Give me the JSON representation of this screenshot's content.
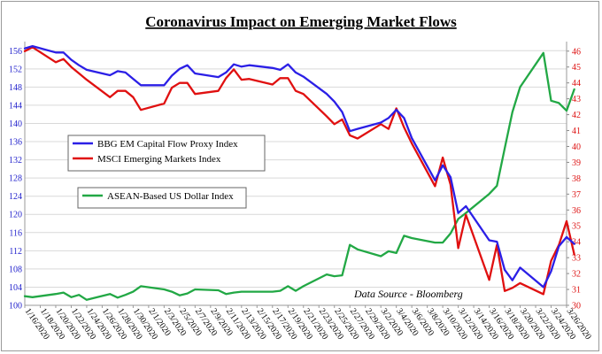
{
  "chart_data": {
    "type": "line",
    "title": "Coronavirus Impact on Emerging Market Flows",
    "source": "Data Source - Bloomberg",
    "grid": "horizontal",
    "legend": "inside-left",
    "x_range": [
      "1/16/2020",
      "3/26/2020"
    ],
    "x_ticks": [
      "1/16/2020",
      "1/18/2020",
      "1/20/2020",
      "1/22/2020",
      "1/24/2020",
      "1/26/2020",
      "1/28/2020",
      "1/30/2020",
      "2/1/2020",
      "2/3/2020",
      "2/5/2020",
      "2/7/2020",
      "2/9/2020",
      "2/11/2020",
      "2/13/2020",
      "2/15/2020",
      "2/17/2020",
      "2/19/2020",
      "2/21/2020",
      "2/23/2020",
      "2/25/2020",
      "2/27/2020",
      "2/29/2020",
      "3/2/2020",
      "3/4/2020",
      "3/6/2020",
      "3/8/2020",
      "3/10/2020",
      "3/12/2020",
      "3/14/2020",
      "3/16/2020",
      "3/18/2020",
      "3/20/2020",
      "3/22/2020",
      "3/24/2020",
      "3/26/2020"
    ],
    "y_left": {
      "min": 100,
      "max": 158,
      "ticks": [
        100,
        104,
        108,
        112,
        116,
        120,
        124,
        128,
        132,
        136,
        140,
        144,
        148,
        152,
        156
      ],
      "color": "#2222cc"
    },
    "y_right": {
      "min": 30,
      "max": 46.6,
      "ticks": [
        30,
        31,
        32,
        33,
        34,
        35,
        36,
        37,
        38,
        39,
        40,
        41,
        42,
        43,
        44,
        45,
        46
      ],
      "color": "#dd1111"
    },
    "series": [
      {
        "name": "BBG EM Capital Flow Proxy Index",
        "axis": "left",
        "color": "#2b1fe6",
        "points": [
          [
            "1/16/2020",
            156.5
          ],
          [
            "1/17/2020",
            157.0
          ],
          [
            "1/20/2020",
            155.6
          ],
          [
            "1/21/2020",
            155.6
          ],
          [
            "1/22/2020",
            154.0
          ],
          [
            "1/23/2020",
            152.8
          ],
          [
            "1/24/2020",
            151.8
          ],
          [
            "1/27/2020",
            150.6
          ],
          [
            "1/28/2020",
            151.5
          ],
          [
            "1/29/2020",
            151.2
          ],
          [
            "1/30/2020",
            149.8
          ],
          [
            "1/31/2020",
            148.4
          ],
          [
            "2/3/2020",
            148.4
          ],
          [
            "2/4/2020",
            150.5
          ],
          [
            "2/5/2020",
            152.0
          ],
          [
            "2/6/2020",
            152.8
          ],
          [
            "2/7/2020",
            151.0
          ],
          [
            "2/10/2020",
            150.2
          ],
          [
            "2/11/2020",
            151.2
          ],
          [
            "2/12/2020",
            153.0
          ],
          [
            "2/13/2020",
            152.5
          ],
          [
            "2/14/2020",
            152.8
          ],
          [
            "2/17/2020",
            152.2
          ],
          [
            "2/18/2020",
            151.8
          ],
          [
            "2/19/2020",
            153.0
          ],
          [
            "2/20/2020",
            151.2
          ],
          [
            "2/21/2020",
            150.3
          ],
          [
            "2/24/2020",
            146.5
          ],
          [
            "2/25/2020",
            144.8
          ],
          [
            "2/26/2020",
            142.5
          ],
          [
            "2/27/2020",
            138.3
          ],
          [
            "2/28/2020",
            138.8
          ],
          [
            "3/2/2020",
            140.2
          ],
          [
            "3/3/2020",
            141.2
          ],
          [
            "3/4/2020",
            143.0
          ],
          [
            "3/5/2020",
            141.2
          ],
          [
            "3/6/2020",
            136.8
          ],
          [
            "3/9/2020",
            127.5
          ],
          [
            "3/10/2020",
            130.8
          ],
          [
            "3/11/2020",
            128.2
          ],
          [
            "3/12/2020",
            120.3
          ],
          [
            "3/13/2020",
            121.8
          ],
          [
            "3/16/2020",
            114.3
          ],
          [
            "3/17/2020",
            114.0
          ],
          [
            "3/18/2020",
            107.8
          ],
          [
            "3/19/2020",
            105.5
          ],
          [
            "3/20/2020",
            108.3
          ],
          [
            "3/23/2020",
            104.0
          ],
          [
            "3/24/2020",
            107.5
          ],
          [
            "3/25/2020",
            113.0
          ],
          [
            "3/26/2020",
            115.0
          ],
          [
            "3/27/2020",
            113.5
          ]
        ]
      },
      {
        "name": "MSCI Emerging Markets Index",
        "axis": "right",
        "color": "#e01010",
        "points": [
          [
            "1/16/2020",
            46.0
          ],
          [
            "1/17/2020",
            46.25
          ],
          [
            "1/20/2020",
            45.3
          ],
          [
            "1/21/2020",
            45.5
          ],
          [
            "1/22/2020",
            45.0
          ],
          [
            "1/23/2020",
            44.6
          ],
          [
            "1/24/2020",
            44.2
          ],
          [
            "1/27/2020",
            43.1
          ],
          [
            "1/28/2020",
            43.5
          ],
          [
            "1/29/2020",
            43.5
          ],
          [
            "1/30/2020",
            43.1
          ],
          [
            "1/31/2020",
            42.3
          ],
          [
            "2/3/2020",
            42.7
          ],
          [
            "2/4/2020",
            43.7
          ],
          [
            "2/5/2020",
            44.0
          ],
          [
            "2/6/2020",
            44.0
          ],
          [
            "2/7/2020",
            43.3
          ],
          [
            "2/10/2020",
            43.5
          ],
          [
            "2/11/2020",
            44.3
          ],
          [
            "2/12/2020",
            44.85
          ],
          [
            "2/13/2020",
            44.2
          ],
          [
            "2/14/2020",
            44.25
          ],
          [
            "2/17/2020",
            43.9
          ],
          [
            "2/18/2020",
            44.3
          ],
          [
            "2/19/2020",
            44.3
          ],
          [
            "2/20/2020",
            43.5
          ],
          [
            "2/21/2020",
            43.3
          ],
          [
            "2/24/2020",
            41.9
          ],
          [
            "2/25/2020",
            41.4
          ],
          [
            "2/26/2020",
            41.7
          ],
          [
            "2/27/2020",
            40.7
          ],
          [
            "2/28/2020",
            40.5
          ],
          [
            "3/2/2020",
            41.4
          ],
          [
            "3/3/2020",
            41.1
          ],
          [
            "3/4/2020",
            42.4
          ],
          [
            "3/5/2020",
            41.2
          ],
          [
            "3/6/2020",
            40.2
          ],
          [
            "3/9/2020",
            37.5
          ],
          [
            "3/10/2020",
            39.3
          ],
          [
            "3/11/2020",
            37.6
          ],
          [
            "3/12/2020",
            33.6
          ],
          [
            "3/13/2020",
            35.7
          ],
          [
            "3/16/2020",
            31.6
          ],
          [
            "3/17/2020",
            33.8
          ],
          [
            "3/18/2020",
            30.9
          ],
          [
            "3/19/2020",
            31.1
          ],
          [
            "3/20/2020",
            31.4
          ],
          [
            "3/23/2020",
            30.7
          ],
          [
            "3/24/2020",
            32.8
          ],
          [
            "3/25/2020",
            33.8
          ],
          [
            "3/26/2020",
            35.3
          ],
          [
            "3/27/2020",
            33.2
          ]
        ]
      },
      {
        "name": "ASEAN-Based US Dollar Index",
        "axis": "left",
        "color": "#22a845",
        "points": [
          [
            "1/16/2020",
            102.0
          ],
          [
            "1/17/2020",
            101.8
          ],
          [
            "1/20/2020",
            102.5
          ],
          [
            "1/21/2020",
            102.8
          ],
          [
            "1/22/2020",
            101.8
          ],
          [
            "1/23/2020",
            102.3
          ],
          [
            "1/24/2020",
            101.2
          ],
          [
            "1/27/2020",
            102.5
          ],
          [
            "1/28/2020",
            101.7
          ],
          [
            "1/29/2020",
            102.3
          ],
          [
            "1/30/2020",
            103.0
          ],
          [
            "1/31/2020",
            104.2
          ],
          [
            "2/3/2020",
            103.5
          ],
          [
            "2/4/2020",
            103.0
          ],
          [
            "2/5/2020",
            102.2
          ],
          [
            "2/6/2020",
            102.6
          ],
          [
            "2/7/2020",
            103.5
          ],
          [
            "2/10/2020",
            103.3
          ],
          [
            "2/11/2020",
            102.5
          ],
          [
            "2/12/2020",
            102.8
          ],
          [
            "2/13/2020",
            103.0
          ],
          [
            "2/14/2020",
            103.0
          ],
          [
            "2/17/2020",
            103.0
          ],
          [
            "2/18/2020",
            103.2
          ],
          [
            "2/19/2020",
            104.2
          ],
          [
            "2/20/2020",
            103.2
          ],
          [
            "2/21/2020",
            104.2
          ],
          [
            "2/24/2020",
            106.8
          ],
          [
            "2/25/2020",
            106.4
          ],
          [
            "2/26/2020",
            106.6
          ],
          [
            "2/27/2020",
            113.3
          ],
          [
            "2/28/2020",
            112.3
          ],
          [
            "3/2/2020",
            110.8
          ],
          [
            "3/3/2020",
            111.9
          ],
          [
            "3/4/2020",
            111.5
          ],
          [
            "3/5/2020",
            115.3
          ],
          [
            "3/6/2020",
            114.8
          ],
          [
            "3/9/2020",
            113.8
          ],
          [
            "3/10/2020",
            113.8
          ],
          [
            "3/11/2020",
            115.8
          ],
          [
            "3/12/2020",
            119.0
          ],
          [
            "3/13/2020",
            120.3
          ],
          [
            "3/16/2020",
            124.5
          ],
          [
            "3/17/2020",
            126.3
          ],
          [
            "3/18/2020",
            134.5
          ],
          [
            "3/19/2020",
            142.5
          ],
          [
            "3/20/2020",
            148.0
          ],
          [
            "3/23/2020",
            155.5
          ],
          [
            "3/24/2020",
            145.0
          ],
          [
            "3/25/2020",
            144.5
          ],
          [
            "3/26/2020",
            142.8
          ],
          [
            "3/27/2020",
            147.5
          ]
        ]
      }
    ]
  }
}
